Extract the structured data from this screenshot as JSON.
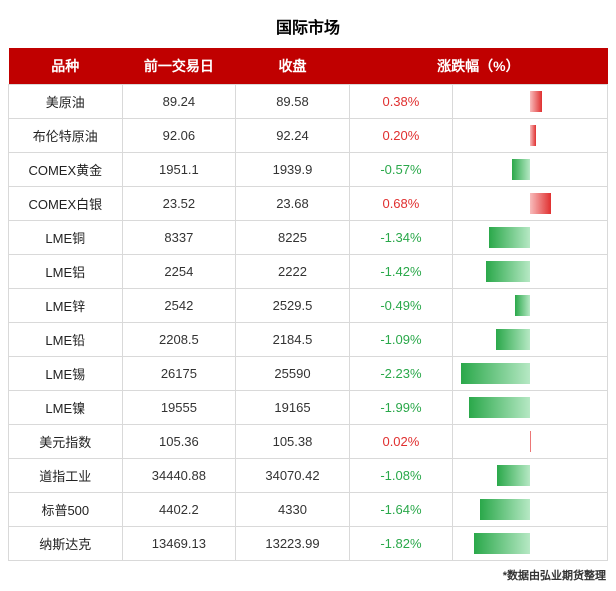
{
  "title": "国际市场",
  "footnote": "*数据由弘业期货整理",
  "colors": {
    "header_bg": "#c00000",
    "header_fg": "#ffffff",
    "border": "#d9d9d9",
    "pos": "#e03030",
    "neg": "#2aa84a",
    "pos_grad_start": "#f8bcbc",
    "neg_grad_end": "#b6e8c4",
    "text": "#333333"
  },
  "table": {
    "type": "table",
    "columns": [
      "品种",
      "前一交易日",
      "收盘",
      "涨跌幅（%）"
    ],
    "bar_axis": {
      "min": -2.5,
      "max": 2.5
    },
    "rows": [
      {
        "name": "美原油",
        "prev": "89.24",
        "close": "89.58",
        "pct": 0.38,
        "pct_text": "0.38%"
      },
      {
        "name": "布伦特原油",
        "prev": "92.06",
        "close": "92.24",
        "pct": 0.2,
        "pct_text": "0.20%"
      },
      {
        "name": "COMEX黄金",
        "prev": "1951.1",
        "close": "1939.9",
        "pct": -0.57,
        "pct_text": "-0.57%"
      },
      {
        "name": "COMEX白银",
        "prev": "23.52",
        "close": "23.68",
        "pct": 0.68,
        "pct_text": "0.68%"
      },
      {
        "name": "LME铜",
        "prev": "8337",
        "close": "8225",
        "pct": -1.34,
        "pct_text": "-1.34%"
      },
      {
        "name": "LME铝",
        "prev": "2254",
        "close": "2222",
        "pct": -1.42,
        "pct_text": "-1.42%"
      },
      {
        "name": "LME锌",
        "prev": "2542",
        "close": "2529.5",
        "pct": -0.49,
        "pct_text": "-0.49%"
      },
      {
        "name": "LME铅",
        "prev": "2208.5",
        "close": "2184.5",
        "pct": -1.09,
        "pct_text": "-1.09%"
      },
      {
        "name": "LME锡",
        "prev": "26175",
        "close": "25590",
        "pct": -2.23,
        "pct_text": "-2.23%"
      },
      {
        "name": "LME镍",
        "prev": "19555",
        "close": "19165",
        "pct": -1.99,
        "pct_text": "-1.99%"
      },
      {
        "name": "美元指数",
        "prev": "105.36",
        "close": "105.38",
        "pct": 0.02,
        "pct_text": "0.02%"
      },
      {
        "name": "道指工业",
        "prev": "34440.88",
        "close": "34070.42",
        "pct": -1.08,
        "pct_text": "-1.08%"
      },
      {
        "name": "标普500",
        "prev": "4402.2",
        "close": "4330",
        "pct": -1.64,
        "pct_text": "-1.64%"
      },
      {
        "name": "纳斯达克",
        "prev": "13469.13",
        "close": "13223.99",
        "pct": -1.82,
        "pct_text": "-1.82%"
      }
    ]
  }
}
